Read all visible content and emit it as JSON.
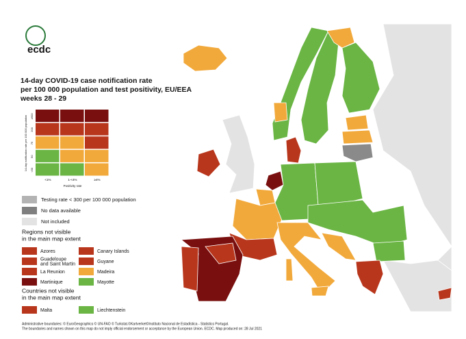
{
  "logo": "ecdc",
  "title_lines": [
    "14-day COVID-19 case notification rate",
    "per 100 000 population and test positivity, EU/EEA",
    "weeks 28 - 29"
  ],
  "matrix": {
    "y_label": "14-day notification rate per 100 000 population",
    "row_labels": [
      "≥500",
      "200",
      "75",
      "50",
      "<50"
    ],
    "column_labels": [
      "<1%",
      "1-<4%",
      "≥4%"
    ],
    "x_label": "Positivity rate",
    "colors": [
      [
        "#7a0f0f",
        "#7a0f0f",
        "#7a0f0f"
      ],
      [
        "#b8361c",
        "#b8361c",
        "#b8361c"
      ],
      [
        "#f2a93b",
        "#f2a93b",
        "#b8361c"
      ],
      [
        "#6ab544",
        "#f2a93b",
        "#f2a93b"
      ],
      [
        "#6ab544",
        "#6ab544",
        "#f2a93b"
      ]
    ]
  },
  "legend": [
    {
      "label": "Testing rate < 300 per 100 000 population",
      "color": "#b3b3b3"
    },
    {
      "label": "No data available",
      "color": "#7f7f7f"
    },
    {
      "label": "Not included",
      "color": "#e3e3e3"
    }
  ],
  "regions": {
    "heading_lines": [
      "Regions not visible",
      "in the main map extent"
    ],
    "items": [
      {
        "label": [
          "Azores"
        ],
        "color": "#b8361c"
      },
      {
        "label": [
          "Canary Islands"
        ],
        "color": "#b8361c"
      },
      {
        "label": [
          "Guadeloupe",
          "and Saint Martin"
        ],
        "color": "#b8361c"
      },
      {
        "label": [
          "Guyane"
        ],
        "color": "#b8361c"
      },
      {
        "label": [
          "La Reunion"
        ],
        "color": "#b8361c"
      },
      {
        "label": [
          "Madeira"
        ],
        "color": "#f2a93b"
      },
      {
        "label": [
          "Martinique"
        ],
        "color": "#7a0f0f"
      },
      {
        "label": [
          "Mayotte"
        ],
        "color": "#6ab544"
      }
    ]
  },
  "countries": {
    "heading_lines": [
      "Countries not visible",
      "in the main map extent"
    ],
    "items": [
      {
        "label": [
          "Malta"
        ],
        "color": "#b8361c"
      },
      {
        "label": [
          "Liechtenstein"
        ],
        "color": "#6ab544"
      }
    ]
  },
  "footer": [
    "Administrative boundaries: © EuroGeographics © UN-FAO © Turkstat.©Kartverket©Instituto Nacional de Estadística - Statistics Portugal.",
    "The boundaries and names shown on this map do not imply official endorsement or acceptance by the European Union. ECDC. Map produced on: 28 Jul 2021"
  ]
}
